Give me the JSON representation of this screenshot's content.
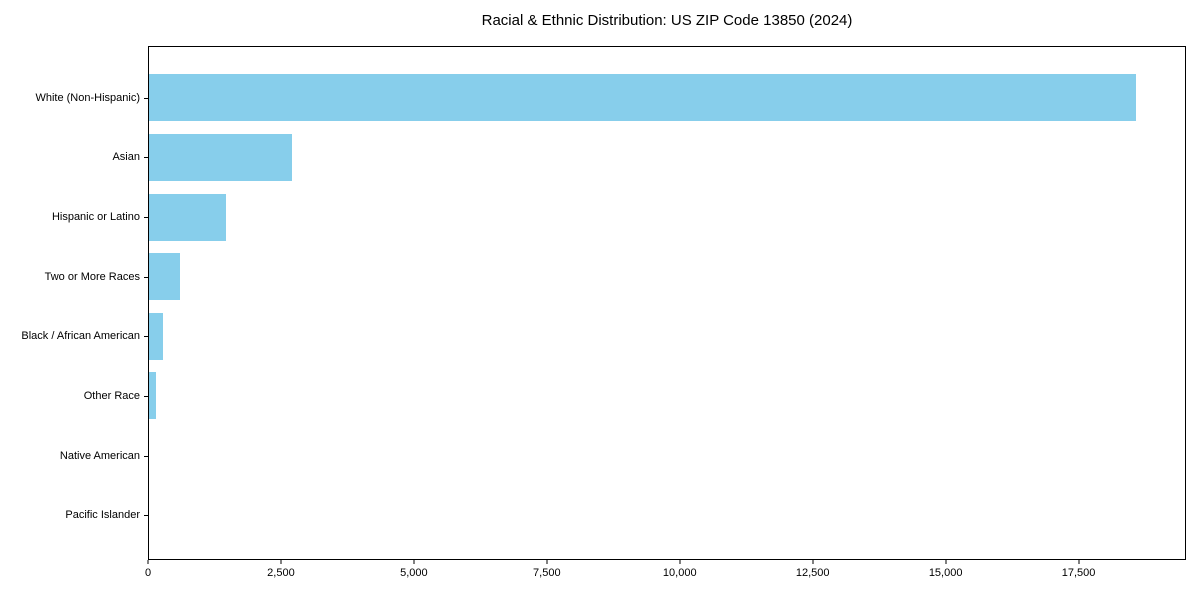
{
  "chart_data": {
    "type": "bar",
    "orientation": "horizontal",
    "title": "Racial & Ethnic Distribution: US ZIP Code 13850 (2024)",
    "categories": [
      "White (Non-Hispanic)",
      "Asian",
      "Hispanic or Latino",
      "Two or More Races",
      "Black / African American",
      "Other Race",
      "Native American",
      "Pacific Islander"
    ],
    "values": [
      18590,
      2690,
      1445,
      575,
      260,
      135,
      0,
      0
    ],
    "xlabel": "",
    "ylabel": "",
    "xlim": [
      0,
      19520
    ],
    "xticks": [
      0,
      2500,
      5000,
      7500,
      10000,
      12500,
      15000,
      17500
    ],
    "xtick_labels": [
      "0",
      "2,500",
      "5,000",
      "7,500",
      "10,000",
      "12,500",
      "15,000",
      "17,500"
    ],
    "bar_color": "#87CEEB",
    "spine_color": "#000000",
    "text_color": "#000000",
    "background_color": "#ffffff",
    "grid": false,
    "legend": null
  }
}
